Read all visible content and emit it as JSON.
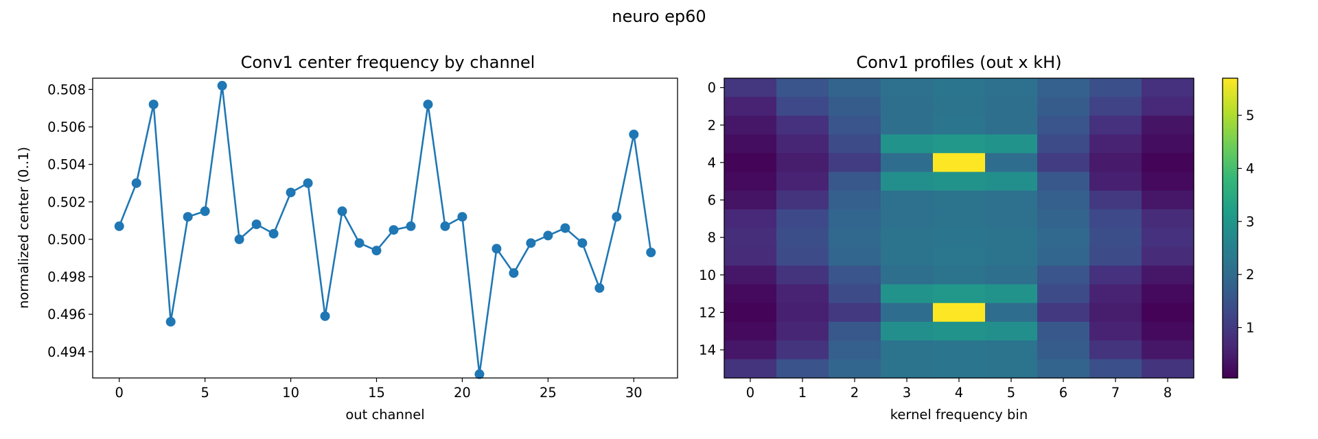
{
  "figure": {
    "title": "neuro ep60"
  },
  "chart_data": [
    {
      "type": "line",
      "title": "Conv1 center frequency by channel",
      "xlabel": "out channel",
      "ylabel": "normalized center (0..1)",
      "xlim": [
        -1.55,
        32.55
      ],
      "ylim": [
        0.4926,
        0.5086
      ],
      "xticks": [
        0,
        5,
        10,
        15,
        20,
        25,
        30
      ],
      "yticks": [
        0.494,
        0.496,
        0.498,
        0.5,
        0.502,
        0.504,
        0.506,
        0.508
      ],
      "color": "#1f77b4",
      "marker": "circle",
      "grid": false,
      "x": [
        0,
        1,
        2,
        3,
        4,
        5,
        6,
        7,
        8,
        9,
        10,
        11,
        12,
        13,
        14,
        15,
        16,
        17,
        18,
        19,
        20,
        21,
        22,
        23,
        24,
        25,
        26,
        27,
        28,
        29,
        30,
        31
      ],
      "y": [
        0.5007,
        0.503,
        0.5072,
        0.4956,
        0.5012,
        0.5015,
        0.5082,
        0.5,
        0.5008,
        0.5003,
        0.5025,
        0.503,
        0.4959,
        0.5015,
        0.4998,
        0.4994,
        0.5005,
        0.5007,
        0.5072,
        0.5007,
        0.5012,
        0.4928,
        0.4995,
        0.4982,
        0.4998,
        0.5002,
        0.5006,
        0.4998,
        0.4974,
        0.5012,
        0.5056,
        0.4993
      ]
    },
    {
      "type": "heatmap",
      "title": "Conv1 profiles (out x kH)",
      "xlabel": "kernel frequency bin",
      "ylabel": "",
      "xticks": [
        0,
        1,
        2,
        3,
        4,
        5,
        6,
        7,
        8
      ],
      "yticks": [
        0,
        2,
        4,
        6,
        8,
        10,
        12,
        14
      ],
      "colormap": "viridis",
      "vmin": 0.05,
      "vmax": 5.7,
      "colorbar_ticks": [
        1,
        2,
        3,
        4,
        5
      ],
      "values": [
        [
          0.95,
          1.55,
          1.85,
          2.15,
          2.25,
          2.15,
          1.8,
          1.45,
          0.85
        ],
        [
          0.6,
          1.3,
          1.7,
          2.1,
          2.2,
          2.1,
          1.7,
          1.2,
          0.7
        ],
        [
          0.4,
          0.85,
          1.55,
          2.1,
          2.25,
          2.1,
          1.55,
          0.85,
          0.35
        ],
        [
          0.25,
          0.65,
          1.35,
          2.95,
          3.05,
          2.95,
          1.35,
          0.6,
          0.25
        ],
        [
          0.12,
          0.5,
          1.05,
          2.05,
          5.7,
          2.05,
          1.05,
          0.45,
          0.12
        ],
        [
          0.2,
          0.6,
          1.6,
          2.85,
          2.95,
          2.85,
          1.6,
          0.55,
          0.2
        ],
        [
          0.35,
          0.9,
          1.75,
          2.15,
          2.2,
          2.15,
          1.75,
          1.0,
          0.4
        ],
        [
          0.7,
          1.3,
          1.9,
          2.15,
          2.2,
          2.15,
          1.85,
          1.3,
          0.75
        ],
        [
          0.8,
          1.4,
          1.95,
          2.2,
          2.25,
          2.2,
          1.95,
          1.4,
          0.85
        ],
        [
          0.75,
          1.35,
          1.9,
          2.2,
          2.3,
          2.2,
          1.9,
          1.35,
          0.75
        ],
        [
          0.4,
          0.9,
          1.55,
          2.1,
          2.2,
          2.1,
          1.55,
          0.85,
          0.4
        ],
        [
          0.2,
          0.6,
          1.35,
          2.95,
          3.05,
          2.95,
          1.35,
          0.6,
          0.2
        ],
        [
          0.1,
          0.55,
          1.0,
          2.05,
          5.7,
          2.05,
          1.0,
          0.5,
          0.08
        ],
        [
          0.2,
          0.65,
          1.6,
          2.85,
          2.95,
          2.85,
          1.6,
          0.6,
          0.2
        ],
        [
          0.4,
          0.9,
          1.75,
          2.2,
          2.25,
          2.2,
          1.7,
          0.9,
          0.4
        ],
        [
          0.9,
          1.5,
          1.9,
          2.2,
          2.25,
          2.2,
          1.85,
          1.45,
          0.9
        ]
      ]
    }
  ]
}
